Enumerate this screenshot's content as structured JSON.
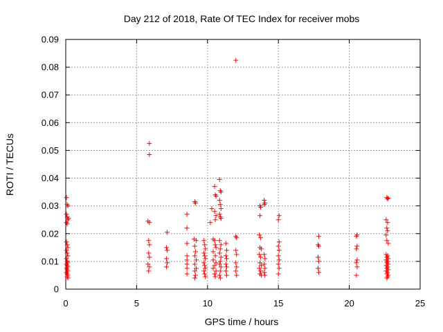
{
  "chart_data": {
    "type": "scatter",
    "title": "Day 212 of 2018, Rate Of TEC Index for receiver mobs",
    "xlabel": "GPS time / hours",
    "ylabel": "ROTI / TECUs",
    "xlim": [
      0,
      25
    ],
    "ylim": [
      0,
      0.09
    ],
    "xticks": [
      "0",
      "5",
      "10",
      "15",
      "20",
      "25"
    ],
    "yticks": [
      "0",
      "0.01",
      "0.02",
      "0.03",
      "0.04",
      "0.05",
      "0.06",
      "0.07",
      "0.08",
      "0.09"
    ],
    "grid": true,
    "marker": "plus",
    "color": "#ff0000",
    "series": [
      {
        "points": [
          [
            0.05,
            0.033
          ],
          [
            0.1,
            0.0305
          ],
          [
            0.15,
            0.03
          ],
          [
            0.05,
            0.027
          ],
          [
            0.1,
            0.026
          ],
          [
            0.15,
            0.025
          ],
          [
            0.05,
            0.024
          ],
          [
            0.1,
            0.0235
          ],
          [
            0.2,
            0.0255
          ],
          [
            0.05,
            0.017
          ],
          [
            0.1,
            0.016
          ],
          [
            0.15,
            0.015
          ],
          [
            0.05,
            0.014
          ],
          [
            0.1,
            0.013
          ],
          [
            0.15,
            0.012
          ],
          [
            0.05,
            0.011
          ],
          [
            0.1,
            0.01
          ],
          [
            0.15,
            0.0095
          ],
          [
            0.05,
            0.009
          ],
          [
            0.1,
            0.0085
          ],
          [
            0.15,
            0.008
          ],
          [
            0.05,
            0.0075
          ],
          [
            0.1,
            0.007
          ],
          [
            0.15,
            0.0065
          ],
          [
            0.05,
            0.006
          ],
          [
            0.1,
            0.0055
          ],
          [
            0.15,
            0.005
          ],
          [
            0.1,
            0.0045
          ],
          [
            0.15,
            0.004
          ],
          [
            5.9,
            0.0525
          ],
          [
            5.9,
            0.0485
          ],
          [
            5.8,
            0.0245
          ],
          [
            5.9,
            0.024
          ],
          [
            5.85,
            0.0175
          ],
          [
            5.9,
            0.016
          ],
          [
            5.85,
            0.013
          ],
          [
            5.9,
            0.0115
          ],
          [
            5.8,
            0.009
          ],
          [
            5.9,
            0.008
          ],
          [
            5.85,
            0.0065
          ],
          [
            7.15,
            0.0205
          ],
          [
            7.1,
            0.015
          ],
          [
            7.15,
            0.014
          ],
          [
            7.1,
            0.011
          ],
          [
            7.15,
            0.0095
          ],
          [
            7.1,
            0.008
          ],
          [
            8.55,
            0.027
          ],
          [
            8.55,
            0.022
          ],
          [
            8.55,
            0.0165
          ],
          [
            8.55,
            0.012
          ],
          [
            8.55,
            0.0105
          ],
          [
            8.55,
            0.009
          ],
          [
            8.55,
            0.0075
          ],
          [
            8.55,
            0.0055
          ],
          [
            9.1,
            0.0315
          ],
          [
            9.15,
            0.031
          ],
          [
            9.05,
            0.018
          ],
          [
            9.2,
            0.0175
          ],
          [
            9.1,
            0.0155
          ],
          [
            9.15,
            0.0135
          ],
          [
            9.1,
            0.012
          ],
          [
            9.2,
            0.0105
          ],
          [
            9.1,
            0.009
          ],
          [
            9.2,
            0.0075
          ],
          [
            9.1,
            0.0065
          ],
          [
            9.15,
            0.005
          ],
          [
            9.1,
            0.004
          ],
          [
            9.75,
            0.0175
          ],
          [
            9.8,
            0.016
          ],
          [
            9.85,
            0.0145
          ],
          [
            9.75,
            0.013
          ],
          [
            9.8,
            0.012
          ],
          [
            9.85,
            0.011
          ],
          [
            9.75,
            0.0095
          ],
          [
            9.8,
            0.0085
          ],
          [
            9.85,
            0.0075
          ],
          [
            9.75,
            0.0065
          ],
          [
            9.8,
            0.0055
          ],
          [
            9.85,
            0.0045
          ],
          [
            10.2,
            0.024
          ],
          [
            10.3,
            0.029
          ],
          [
            10.5,
            0.037
          ],
          [
            10.55,
            0.034
          ],
          [
            10.6,
            0.0335
          ],
          [
            10.5,
            0.028
          ],
          [
            10.6,
            0.0265
          ],
          [
            10.55,
            0.025
          ],
          [
            10.4,
            0.018
          ],
          [
            10.5,
            0.0175
          ],
          [
            10.55,
            0.016
          ],
          [
            10.6,
            0.015
          ],
          [
            10.4,
            0.0135
          ],
          [
            10.55,
            0.012
          ],
          [
            10.4,
            0.0105
          ],
          [
            10.6,
            0.0095
          ],
          [
            10.5,
            0.0085
          ],
          [
            10.4,
            0.0075
          ],
          [
            10.6,
            0.0065
          ],
          [
            10.5,
            0.0055
          ],
          [
            10.55,
            0.0045
          ],
          [
            10.85,
            0.0395
          ],
          [
            10.9,
            0.0355
          ],
          [
            10.95,
            0.035
          ],
          [
            10.85,
            0.032
          ],
          [
            10.9,
            0.0305
          ],
          [
            10.95,
            0.029
          ],
          [
            10.85,
            0.027
          ],
          [
            10.9,
            0.026
          ],
          [
            10.95,
            0.0255
          ],
          [
            10.85,
            0.0175
          ],
          [
            10.95,
            0.016
          ],
          [
            10.9,
            0.0145
          ],
          [
            10.85,
            0.013
          ],
          [
            10.95,
            0.0115
          ],
          [
            10.9,
            0.01
          ],
          [
            10.85,
            0.009
          ],
          [
            10.95,
            0.008
          ],
          [
            10.9,
            0.0065
          ],
          [
            10.85,
            0.005
          ],
          [
            10.9,
            0.004
          ],
          [
            11.3,
            0.0165
          ],
          [
            11.35,
            0.014
          ],
          [
            11.3,
            0.012
          ],
          [
            11.35,
            0.011
          ],
          [
            11.3,
            0.009
          ],
          [
            11.35,
            0.008
          ],
          [
            11.3,
            0.0065
          ],
          [
            11.35,
            0.005
          ],
          [
            12.0,
            0.0825
          ],
          [
            12.0,
            0.019
          ],
          [
            12.05,
            0.0185
          ],
          [
            12.0,
            0.014
          ],
          [
            12.05,
            0.0125
          ],
          [
            12.0,
            0.0095
          ],
          [
            12.05,
            0.008
          ],
          [
            12.0,
            0.0065
          ],
          [
            12.05,
            0.005
          ],
          [
            13.7,
            0.03
          ],
          [
            13.75,
            0.0295
          ],
          [
            13.7,
            0.0265
          ],
          [
            13.65,
            0.0195
          ],
          [
            13.75,
            0.0185
          ],
          [
            13.7,
            0.015
          ],
          [
            13.8,
            0.0145
          ],
          [
            13.65,
            0.0125
          ],
          [
            13.75,
            0.0115
          ],
          [
            13.7,
            0.0095
          ],
          [
            13.8,
            0.0085
          ],
          [
            13.65,
            0.0075
          ],
          [
            13.75,
            0.0065
          ],
          [
            13.7,
            0.0055
          ],
          [
            13.8,
            0.005
          ],
          [
            14.0,
            0.032
          ],
          [
            14.05,
            0.031
          ],
          [
            14.0,
            0.0305
          ],
          [
            14.0,
            0.0125
          ],
          [
            14.05,
            0.011
          ],
          [
            14.0,
            0.009
          ],
          [
            14.05,
            0.0075
          ],
          [
            14.0,
            0.006
          ],
          [
            14.05,
            0.005
          ],
          [
            15.05,
            0.0265
          ],
          [
            15.0,
            0.025
          ],
          [
            15.05,
            0.017
          ],
          [
            15.0,
            0.0155
          ],
          [
            15.05,
            0.014
          ],
          [
            15.0,
            0.012
          ],
          [
            15.05,
            0.0105
          ],
          [
            15.0,
            0.009
          ],
          [
            15.05,
            0.0075
          ],
          [
            15.0,
            0.0055
          ],
          [
            17.85,
            0.019
          ],
          [
            17.8,
            0.016
          ],
          [
            17.85,
            0.0155
          ],
          [
            17.8,
            0.0115
          ],
          [
            17.85,
            0.01
          ],
          [
            17.8,
            0.0075
          ],
          [
            17.85,
            0.006
          ],
          [
            20.55,
            0.0195
          ],
          [
            20.5,
            0.019
          ],
          [
            20.55,
            0.0155
          ],
          [
            20.5,
            0.0145
          ],
          [
            20.55,
            0.0105
          ],
          [
            20.5,
            0.0095
          ],
          [
            20.55,
            0.008
          ],
          [
            20.5,
            0.005
          ],
          [
            22.65,
            0.033
          ],
          [
            22.7,
            0.0325
          ],
          [
            22.75,
            0.0328
          ],
          [
            22.6,
            0.025
          ],
          [
            22.7,
            0.024
          ],
          [
            22.65,
            0.022
          ],
          [
            22.7,
            0.021
          ],
          [
            22.6,
            0.0195
          ],
          [
            22.65,
            0.0175
          ],
          [
            22.75,
            0.0165
          ],
          [
            22.6,
            0.0125
          ],
          [
            22.7,
            0.012
          ],
          [
            22.65,
            0.0115
          ],
          [
            22.75,
            0.011
          ],
          [
            22.6,
            0.0105
          ],
          [
            22.7,
            0.01
          ],
          [
            22.65,
            0.0095
          ],
          [
            22.75,
            0.009
          ],
          [
            22.6,
            0.0085
          ],
          [
            22.7,
            0.008
          ],
          [
            22.65,
            0.0075
          ],
          [
            22.75,
            0.007
          ],
          [
            22.6,
            0.0065
          ],
          [
            22.7,
            0.006
          ],
          [
            22.65,
            0.0055
          ],
          [
            22.75,
            0.005
          ],
          [
            22.7,
            0.0045
          ],
          [
            22.65,
            0.004
          ]
        ]
      }
    ]
  }
}
